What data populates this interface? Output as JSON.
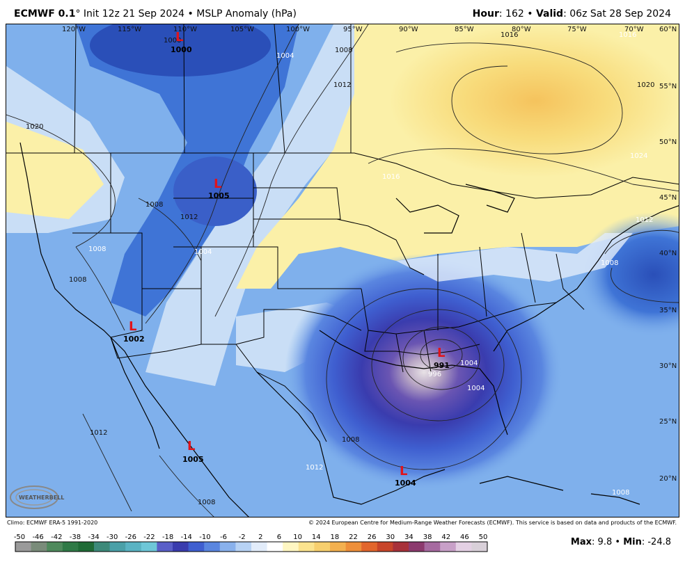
{
  "header": {
    "model": "ECMWF 0.1",
    "degree": "°",
    "init": "Init 12z 21 Sep 2024",
    "bullet": "•",
    "field": "MSLP Anomaly (hPa)",
    "hour_label": "Hour",
    "hour_value": "162",
    "valid_label": "Valid",
    "valid_value": "06z Sat 28 Sep 2024"
  },
  "map": {
    "longitude_labels": [
      "120°W",
      "115°W",
      "110°W",
      "105°W",
      "100°W",
      "95°W",
      "90°W",
      "85°W",
      "80°W",
      "75°W",
      "70°W"
    ],
    "latitude_labels": [
      "60°N",
      "55°N",
      "50°N",
      "45°N",
      "40°N",
      "35°N",
      "30°N",
      "25°N",
      "20°N"
    ],
    "lows": [
      {
        "letter": "L",
        "value": "1000"
      },
      {
        "letter": "L",
        "value": "1005"
      },
      {
        "letter": "L",
        "value": "1002"
      },
      {
        "letter": "L",
        "value": "1005"
      },
      {
        "letter": "L",
        "value": "991"
      },
      {
        "letter": "L",
        "value": "1004"
      }
    ],
    "contour_labels": [
      "1000",
      "1004",
      "1008",
      "1012",
      "1016",
      "1020",
      "1016",
      "1012",
      "1008",
      "1004",
      "996",
      "1020",
      "1008",
      "1012",
      "1008",
      "1008",
      "1004",
      "1016",
      "1012",
      "1008",
      "1012",
      "1008",
      "1024",
      "1004",
      "1008"
    ],
    "logo_text": "WEATHERBELL",
    "colors": {
      "deep_blue": "#2a3fb4",
      "mid_blue": "#3f74d6",
      "light_blue": "#7fb0ec",
      "pale_blue": "#c9def6",
      "pale_yellow": "#fbf0a8",
      "yellow": "#f8dc7c",
      "orange": "#f5c35d",
      "purple": "#5a43a6",
      "low_red": "#e0141c"
    }
  },
  "footer": {
    "climo": "Climo: ECMWF ERA-5 1991-2020",
    "copyright": "© 2024 European Centre for Medium-Range Weather Forecasts (ECMWF). This service is based on data and products of the ECMWF."
  },
  "colorbar": {
    "ticks": [
      "-50",
      "-46",
      "-42",
      "-38",
      "-34",
      "-30",
      "-26",
      "-22",
      "-18",
      "-14",
      "-10",
      "-6",
      "-2",
      "2",
      "6",
      "10",
      "14",
      "18",
      "22",
      "26",
      "30",
      "34",
      "38",
      "42",
      "46",
      "50"
    ],
    "colors": [
      "#9a9a9a",
      "#7a8c7a",
      "#4f8a5c",
      "#2f7a46",
      "#1f6b36",
      "#3d8a7a",
      "#4aa0a8",
      "#5ab3c3",
      "#6ec7d8",
      "#5a5fc8",
      "#3a3cae",
      "#3f5fd0",
      "#5a86e0",
      "#89b1ec",
      "#b7d2f4",
      "#e2ecfa",
      "#ffffff",
      "#fff7c2",
      "#fbe38e",
      "#f7cf6e",
      "#f3b04f",
      "#ee8f3a",
      "#e2662c",
      "#c8452a",
      "#a8313a",
      "#8c3a6e",
      "#a66aa0",
      "#c8a0c8",
      "#e4d0e4",
      "#d9d0d9"
    ]
  },
  "stats": {
    "max_label": "Max",
    "max_value": "9.8",
    "bullet": "•",
    "min_label": "Min",
    "min_value": "-24.8"
  }
}
